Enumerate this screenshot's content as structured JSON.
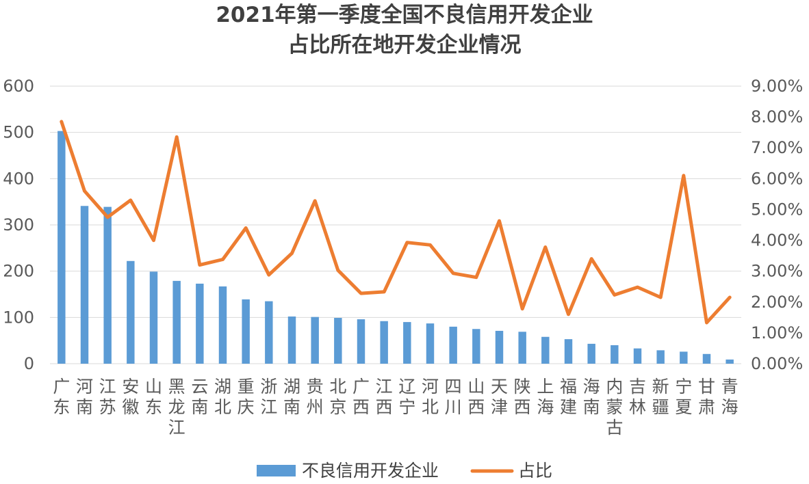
{
  "chart_data": {
    "type": "bar+line",
    "title": "2021年第一季度全国不良信用开发企业",
    "subtitle": "占比所在地开发企业情况",
    "categories": [
      "广东",
      "河南",
      "江苏",
      "安徽",
      "山东",
      "黑龙江",
      "云南",
      "湖北",
      "重庆",
      "浙江",
      "湖南",
      "贵州",
      "北京",
      "广西",
      "江西",
      "辽宁",
      "河北",
      "四川",
      "山西",
      "天津",
      "陕西",
      "上海",
      "福建",
      "海南",
      "内蒙古",
      "吉林",
      "新疆",
      "宁夏",
      "甘肃",
      "青海"
    ],
    "series": [
      {
        "name": "不良信用开发企业",
        "type": "bar",
        "axis": "left",
        "values": [
          503,
          341,
          339,
          222,
          199,
          179,
          173,
          167,
          139,
          135,
          102,
          101,
          99,
          96,
          92,
          90,
          87,
          80,
          75,
          71,
          69,
          58,
          53,
          43,
          40,
          33,
          29,
          26,
          21,
          9
        ]
      },
      {
        "name": "占比",
        "type": "line",
        "axis": "right",
        "values": [
          7.85,
          5.6,
          4.75,
          5.3,
          4.0,
          7.35,
          3.2,
          3.38,
          4.4,
          2.88,
          3.58,
          5.28,
          3.03,
          2.28,
          2.33,
          3.93,
          3.85,
          2.93,
          2.8,
          4.63,
          1.78,
          3.78,
          1.6,
          3.4,
          2.23,
          2.48,
          2.15,
          6.1,
          1.33,
          2.15
        ]
      }
    ],
    "y_left": {
      "min": 0,
      "max": 600,
      "ticks": [
        "0",
        "100",
        "200",
        "300",
        "400",
        "500",
        "600"
      ]
    },
    "y_right": {
      "min": 0,
      "max": 9,
      "ticks": [
        "0.00%",
        "1.00%",
        "2.00%",
        "3.00%",
        "4.00%",
        "5.00%",
        "6.00%",
        "7.00%",
        "8.00%",
        "9.00%"
      ]
    },
    "legend": {
      "position": "bottom",
      "items": [
        "不良信用开发企业",
        "占比"
      ]
    },
    "colors": {
      "bar": "#5B9BD5",
      "line": "#ED7D31",
      "grid": "#D9D9D9"
    },
    "grid": true
  }
}
